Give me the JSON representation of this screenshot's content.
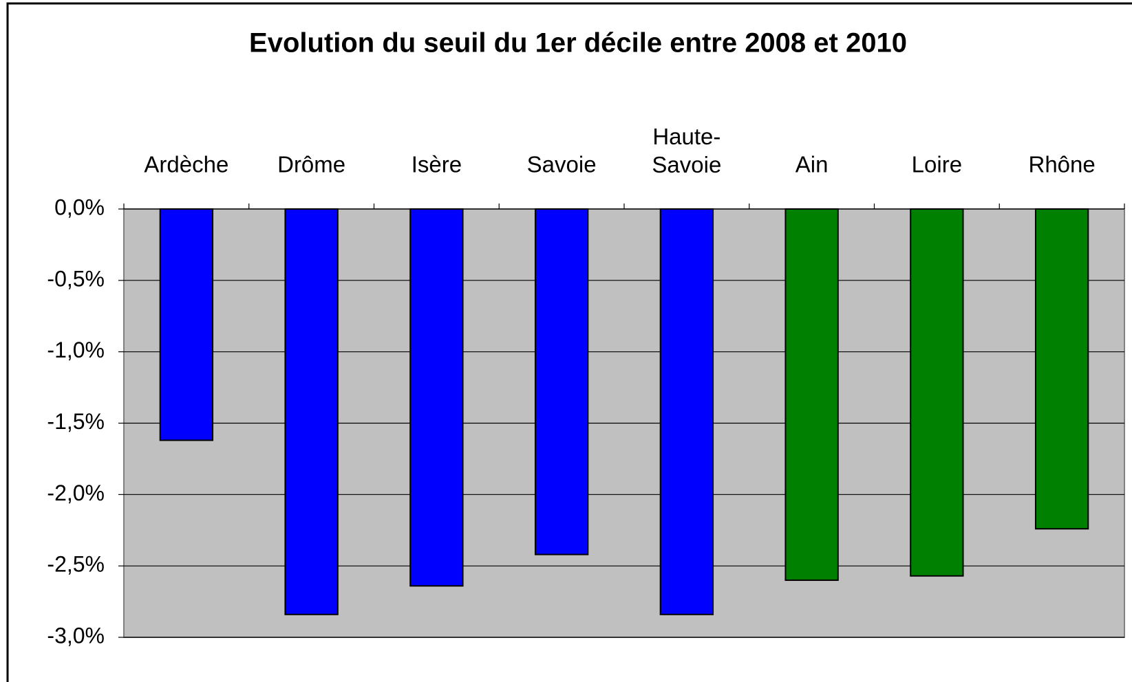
{
  "chart_data": {
    "type": "bar",
    "title": "Evolution du seuil du 1er décile entre 2008 et 2010",
    "categories": [
      "Ardèche",
      "Drôme",
      "Isère",
      "Savoie",
      "Haute-Savoie",
      "Ain",
      "Loire",
      "Rhône"
    ],
    "values": [
      -1.62,
      -2.84,
      -2.64,
      -2.42,
      -2.84,
      -2.6,
      -2.57,
      -2.24
    ],
    "colors": [
      "#0000ff",
      "#0000ff",
      "#0000ff",
      "#0000ff",
      "#0000ff",
      "#008000",
      "#008000",
      "#008000"
    ],
    "ylim": [
      -3,
      0
    ],
    "yticks": [
      {
        "value": 0,
        "label": "0,0%"
      },
      {
        "value": -0.5,
        "label": "-0,5%"
      },
      {
        "value": -1,
        "label": "-1,0%"
      },
      {
        "value": -1.5,
        "label": "-1,5%"
      },
      {
        "value": -2,
        "label": "-2,0%"
      },
      {
        "value": -2.5,
        "label": "-2,5%"
      },
      {
        "value": -3,
        "label": "-3,0%"
      }
    ],
    "grid": true
  }
}
